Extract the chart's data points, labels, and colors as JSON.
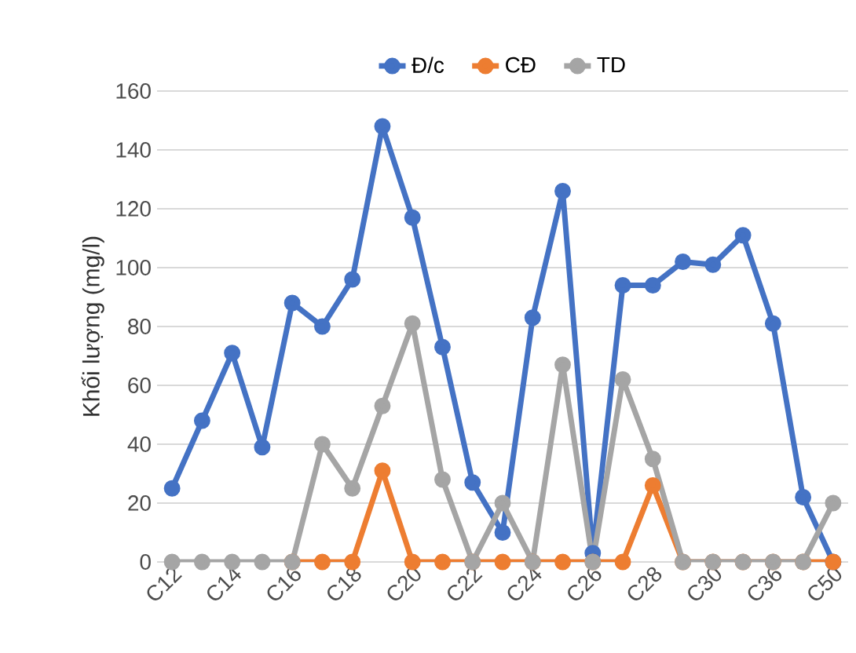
{
  "chart_data": {
    "type": "line",
    "ylabel": "Khối lượng  (mg/l)",
    "categories": [
      "C12",
      null,
      "C14",
      null,
      "C16",
      null,
      "C18",
      null,
      "C20",
      null,
      "C22",
      null,
      "C24",
      null,
      "C26",
      null,
      "C28",
      null,
      "C30",
      null,
      "C36",
      null,
      "C50"
    ],
    "series": [
      {
        "name": "Đ/c",
        "color": "#4472c4",
        "values": [
          25,
          48,
          71,
          39,
          88,
          80,
          96,
          148,
          117,
          73,
          27,
          10,
          83,
          126,
          3,
          94,
          94,
          102,
          101,
          111,
          81,
          22,
          0
        ]
      },
      {
        "name": "CĐ",
        "color": "#ed7d31",
        "values": [
          null,
          null,
          null,
          null,
          0,
          0,
          0,
          31,
          0,
          0,
          0,
          0,
          0,
          0,
          0,
          0,
          26,
          0,
          0,
          0,
          0,
          0,
          0
        ]
      },
      {
        "name": "TD",
        "color": "#a5a5a5",
        "values": [
          0,
          0,
          0,
          0,
          0,
          40,
          25,
          53,
          81,
          28,
          0,
          20,
          0,
          67,
          0,
          62,
          35,
          0,
          0,
          0,
          0,
          0,
          20
        ]
      }
    ],
    "ylim": [
      0,
      160
    ],
    "yticks": [
      0,
      20,
      40,
      60,
      80,
      100,
      120,
      140,
      160
    ],
    "grid": "y",
    "legend": "top",
    "marker": "circle",
    "line_style": "solid"
  }
}
